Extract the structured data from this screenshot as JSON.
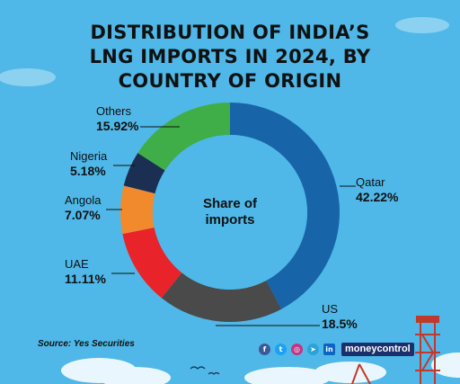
{
  "title": {
    "line1": "DISTRIBUTION OF INDIA’S",
    "line2": "LNG IMPORTS IN 2024, BY",
    "line3": "COUNTRY OF ORIGIN"
  },
  "center_label": {
    "line1": "Share of",
    "line2": "imports"
  },
  "source": "Source: Yes Securities",
  "brand": "moneycontrol",
  "social_icons": [
    "facebook-icon",
    "twitter-icon",
    "instagram-icon",
    "telegram-icon",
    "linkedin-icon"
  ],
  "colors": {
    "background": "#4fb8e8",
    "qatar": "#1864a8",
    "us": "#4a4a4a",
    "uae": "#e8232a",
    "angola": "#f08a2c",
    "nigeria": "#1a2f52",
    "others": "#3fae48"
  },
  "chart_data": {
    "type": "pie",
    "style": "donut",
    "categories": [
      "Qatar",
      "US",
      "UAE",
      "Angola",
      "Nigeria",
      "Others"
    ],
    "values": [
      42.22,
      18.5,
      11.11,
      7.07,
      5.18,
      15.92
    ],
    "value_labels": [
      "42.22%",
      "18.5%",
      "11.11%",
      "7.07%",
      "5.18%",
      "15.92%"
    ],
    "unit": "%",
    "title": "DISTRIBUTION OF INDIA’S LNG IMPORTS IN 2024, BY COUNTRY OF ORIGIN",
    "legend": "none"
  }
}
